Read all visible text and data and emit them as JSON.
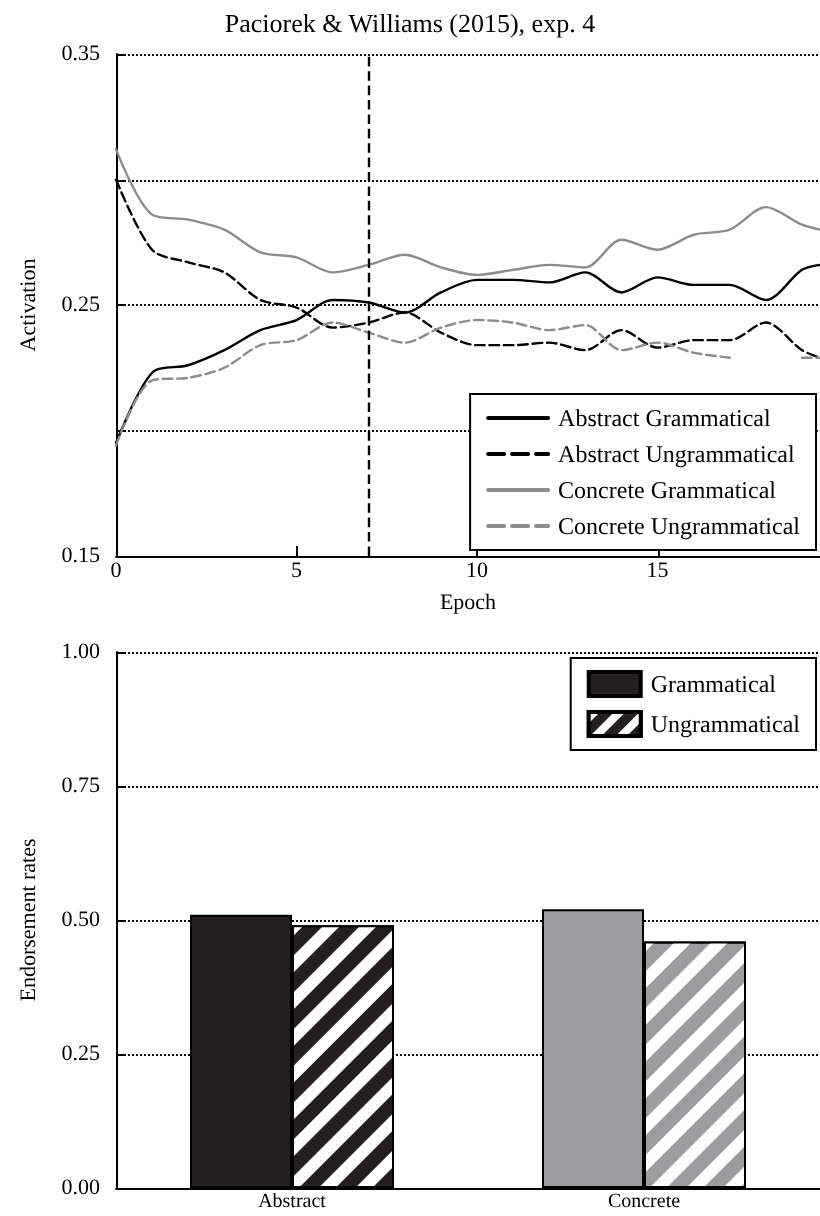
{
  "chart_data": [
    {
      "type": "line",
      "title": "Paciorek & Williams (2015), exp. 4",
      "xlabel": "Epoch",
      "ylabel": "Activation",
      "x": [
        0,
        1,
        2,
        3,
        4,
        5,
        6,
        7,
        8,
        9,
        10,
        11,
        12,
        13,
        14,
        15,
        16,
        17,
        18,
        19,
        19.5
      ],
      "series": [
        {
          "name": "Abstract Grammatical",
          "color": "#000000",
          "line_style": "solid",
          "values": [
            0.195,
            0.223,
            0.226,
            0.232,
            0.24,
            0.244,
            0.252,
            0.251,
            0.247,
            0.255,
            0.26,
            0.26,
            0.259,
            0.263,
            0.255,
            0.261,
            0.258,
            0.258,
            0.252,
            0.264,
            0.266
          ]
        },
        {
          "name": "Abstract Ungrammatical",
          "color": "#000000",
          "line_style": "dashed",
          "values": [
            0.3,
            0.272,
            0.267,
            0.263,
            0.252,
            0.249,
            0.241,
            0.243,
            0.247,
            0.239,
            0.234,
            0.234,
            0.235,
            0.232,
            0.24,
            0.233,
            0.236,
            0.236,
            0.243,
            0.232,
            0.229
          ]
        },
        {
          "name": "Concrete Grammatical",
          "color": "#8c8c8c",
          "line_style": "solid",
          "values": [
            0.312,
            0.286,
            0.284,
            0.28,
            0.271,
            0.269,
            0.263,
            0.266,
            0.27,
            0.265,
            0.262,
            0.264,
            0.266,
            0.265,
            0.276,
            0.272,
            0.278,
            0.28,
            0.289,
            0.282,
            0.28
          ]
        },
        {
          "name": "Concrete Ungrammatical",
          "color": "#8c8c8c",
          "line_style": "dashed",
          "values": [
            0.194,
            0.22,
            0.221,
            0.225,
            0.234,
            0.236,
            0.243,
            0.239,
            0.235,
            0.241,
            0.244,
            0.243,
            0.24,
            0.242,
            0.232,
            0.235,
            0.231,
            0.229,
            null,
            0.229,
            0.229
          ]
        }
      ],
      "xlim": [
        0,
        19.5
      ],
      "xticks": [
        0,
        5,
        10,
        15
      ],
      "ylim": [
        0.15,
        0.35
      ],
      "yticks": [
        0.15,
        {
          "value": 0.2,
          "label": null
        },
        0.25,
        {
          "value": 0.3,
          "label": null
        },
        0.35
      ],
      "ref_lines": [
        {
          "axis": "x",
          "value": 7,
          "color": "#000000",
          "line_style": "dashed"
        }
      ],
      "grid": "y",
      "legend": "bottom right",
      "marker": "none"
    },
    {
      "type": "bar",
      "ylabel": "Endorsement rates",
      "categories": [
        "Abstract",
        "Concrete"
      ],
      "series": [
        {
          "name": "Grammatical",
          "colors": [
            "#231f20",
            "#9d9d9f"
          ],
          "values": [
            0.51,
            0.52
          ]
        },
        {
          "name": "Ungrammatical",
          "colors": [
            "#231f20",
            "#9d9d9f"
          ],
          "values": [
            0.49,
            0.46
          ]
        }
      ],
      "ylim": [
        0,
        1
      ],
      "yticks": [
        {
          "value": 0,
          "label": "0.00"
        },
        0.25,
        {
          "value": 0.5,
          "label": "0.50"
        },
        0.75,
        {
          "value": 1,
          "label": "1.00"
        }
      ],
      "grid": "y",
      "legend": "top right"
    }
  ]
}
